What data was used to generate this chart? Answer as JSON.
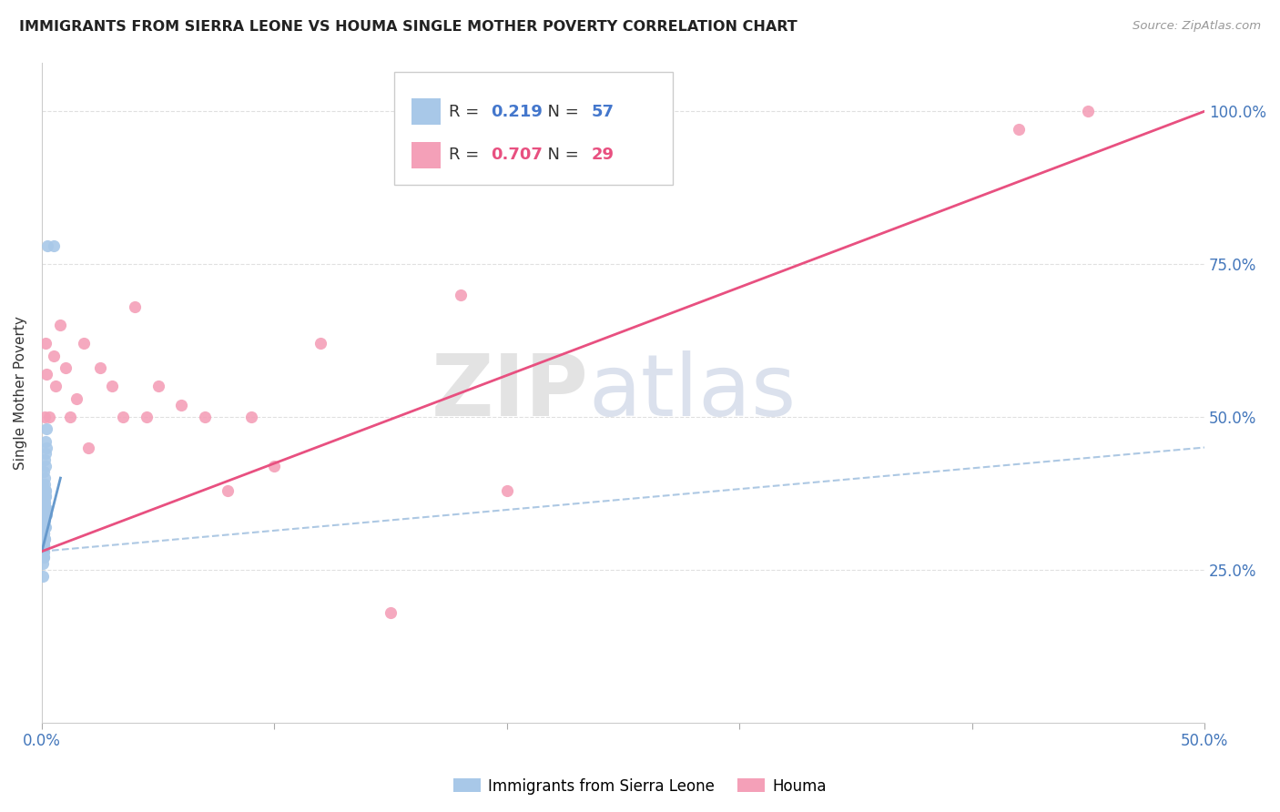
{
  "title": "IMMIGRANTS FROM SIERRA LEONE VS HOUMA SINGLE MOTHER POVERTY CORRELATION CHART",
  "source": "Source: ZipAtlas.com",
  "ylabel": "Single Mother Poverty",
  "right_yticks": [
    "100.0%",
    "75.0%",
    "50.0%",
    "25.0%"
  ],
  "right_ytick_vals": [
    1.0,
    0.75,
    0.5,
    0.25
  ],
  "xlim": [
    0.0,
    0.5
  ],
  "ylim": [
    0.0,
    1.08
  ],
  "blue_color": "#a8c8e8",
  "pink_color": "#f4a0b8",
  "blue_line_color": "#6699cc",
  "pink_line_color": "#e85080",
  "grid_color": "#dddddd",
  "background_color": "#ffffff",
  "blue_scatter_x": [
    0.0008,
    0.001,
    0.0005,
    0.0012,
    0.0007,
    0.0015,
    0.0009,
    0.0006,
    0.0018,
    0.0008,
    0.0011,
    0.0013,
    0.0007,
    0.0005,
    0.001,
    0.0016,
    0.0006,
    0.0014,
    0.0009,
    0.0019,
    0.0004,
    0.0007,
    0.001,
    0.0013,
    0.0017,
    0.0007,
    0.0004,
    0.001,
    0.0014,
    0.002,
    0.0006,
    0.0009,
    0.0004,
    0.0016,
    0.0013,
    0.0009,
    0.0007,
    0.002,
    0.0003,
    0.0013,
    0.0009,
    0.0006,
    0.0016,
    0.0004,
    0.001,
    0.0014,
    0.0007,
    0.0019,
    0.0009,
    0.0003,
    0.0013,
    0.0006,
    0.0009,
    0.0016,
    0.0007,
    0.0025,
    0.005
  ],
  "blue_scatter_y": [
    0.34,
    0.36,
    0.39,
    0.43,
    0.31,
    0.46,
    0.29,
    0.41,
    0.34,
    0.37,
    0.3,
    0.32,
    0.35,
    0.28,
    0.4,
    0.42,
    0.27,
    0.38,
    0.33,
    0.45,
    0.26,
    0.31,
    0.34,
    0.39,
    0.44,
    0.29,
    0.24,
    0.32,
    0.37,
    0.48,
    0.3,
    0.35,
    0.32,
    0.38,
    0.34,
    0.3,
    0.33,
    0.35,
    0.32,
    0.36,
    0.28,
    0.3,
    0.37,
    0.29,
    0.33,
    0.35,
    0.28,
    0.34,
    0.31,
    0.28,
    0.3,
    0.27,
    0.29,
    0.32,
    0.29,
    0.78,
    0.78
  ],
  "pink_scatter_x": [
    0.001,
    0.0015,
    0.002,
    0.003,
    0.005,
    0.006,
    0.008,
    0.01,
    0.012,
    0.015,
    0.018,
    0.02,
    0.025,
    0.03,
    0.035,
    0.04,
    0.045,
    0.05,
    0.06,
    0.07,
    0.08,
    0.09,
    0.1,
    0.12,
    0.15,
    0.18,
    0.2,
    0.42,
    0.45
  ],
  "pink_scatter_y": [
    0.5,
    0.62,
    0.57,
    0.5,
    0.6,
    0.55,
    0.65,
    0.58,
    0.5,
    0.53,
    0.62,
    0.45,
    0.58,
    0.55,
    0.5,
    0.68,
    0.5,
    0.55,
    0.52,
    0.5,
    0.38,
    0.5,
    0.42,
    0.62,
    0.18,
    0.7,
    0.38,
    0.97,
    1.0
  ],
  "blue_trend_x": [
    0.0,
    0.008
  ],
  "blue_trend_y": [
    0.28,
    0.4
  ],
  "pink_trend_x": [
    0.0,
    0.5
  ],
  "pink_trend_y": [
    0.28,
    1.0
  ]
}
